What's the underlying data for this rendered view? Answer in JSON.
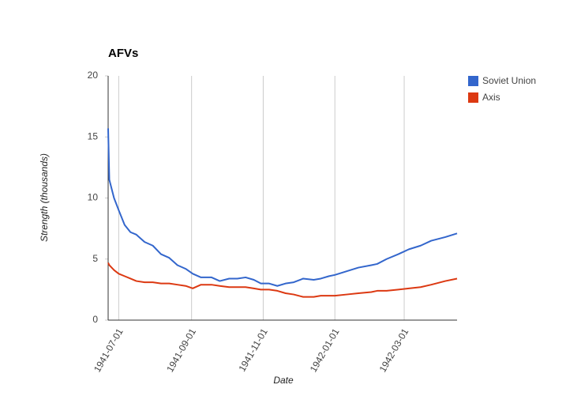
{
  "chart_data": {
    "type": "line",
    "title": "AFVs",
    "x_label": "Date",
    "y_label": "Strength (thousands)",
    "x": [
      "1941-06-22",
      "1941-06-23",
      "1941-06-27",
      "1941-07-01",
      "1941-07-06",
      "1941-07-11",
      "1941-07-16",
      "1941-07-23",
      "1941-07-30",
      "1941-08-06",
      "1941-08-13",
      "1941-08-20",
      "1941-08-27",
      "1941-09-02",
      "1941-09-09",
      "1941-09-18",
      "1941-09-25",
      "1941-10-03",
      "1941-10-10",
      "1941-10-17",
      "1941-10-24",
      "1941-10-30",
      "1941-11-06",
      "1941-11-13",
      "1941-11-20",
      "1941-11-27",
      "1941-12-05",
      "1941-12-14",
      "1941-12-20",
      "1941-12-27",
      "1942-01-01",
      "1942-01-11",
      "1942-01-21",
      "1942-02-01",
      "1942-02-06",
      "1942-02-14",
      "1942-02-24",
      "1942-03-05",
      "1942-03-15",
      "1942-03-24",
      "1942-04-05",
      "1942-04-15"
    ],
    "series": [
      {
        "name": "Soviet Union",
        "color": "#3366cc",
        "values": [
          15.7,
          11.5,
          10.0,
          9.0,
          7.8,
          7.2,
          7.0,
          6.4,
          6.1,
          5.4,
          5.1,
          4.5,
          4.2,
          3.8,
          3.5,
          3.5,
          3.2,
          3.4,
          3.4,
          3.5,
          3.3,
          3.0,
          3.0,
          2.8,
          3.0,
          3.1,
          3.4,
          3.3,
          3.4,
          3.6,
          3.7,
          4.0,
          4.3,
          4.5,
          4.6,
          5.0,
          5.4,
          5.8,
          6.1,
          6.5,
          6.8,
          7.1
        ]
      },
      {
        "name": "Axis",
        "color": "#dc3912",
        "values": [
          4.7,
          4.5,
          4.1,
          3.8,
          3.6,
          3.4,
          3.2,
          3.1,
          3.1,
          3.0,
          3.0,
          2.9,
          2.8,
          2.6,
          2.9,
          2.9,
          2.8,
          2.7,
          2.7,
          2.7,
          2.6,
          2.5,
          2.5,
          2.4,
          2.2,
          2.1,
          1.9,
          1.9,
          2.0,
          2.0,
          2.0,
          2.1,
          2.2,
          2.3,
          2.4,
          2.4,
          2.5,
          2.6,
          2.7,
          2.9,
          3.2,
          3.4
        ]
      }
    ],
    "xlim": [
      "1941-06-22",
      "1942-04-15"
    ],
    "xticks": [
      "1941-07-01",
      "1941-09-01",
      "1941-11-01",
      "1942-01-01",
      "1942-03-01"
    ],
    "ylim": [
      0,
      20
    ],
    "yticks": [
      0,
      5,
      10,
      15,
      20
    ],
    "xgrid": true,
    "legend": "right"
  }
}
